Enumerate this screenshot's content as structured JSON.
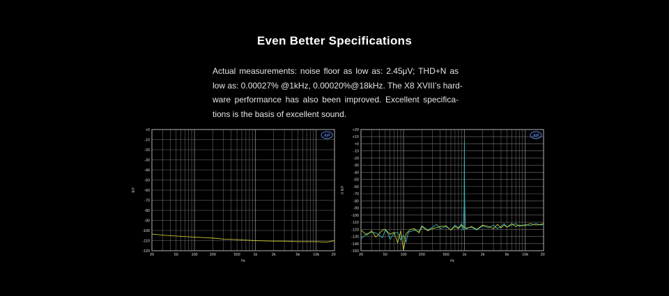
{
  "heading": "Even Better Specifications",
  "description": {
    "lines": [
      "Actual measurements: noise floor as low as: 2.45μV; THD+N as",
      "low as: 0.00027% @1kHz, 0.00020%@18kHz. The X8 XVIII’s hard-",
      "ware performance has also been improved. Excellent specifica-",
      "tions is the basis of excellent sound."
    ]
  },
  "colors": {
    "background": "#000000",
    "text": "#ffffff",
    "grid": "#8a8a8a",
    "trace_yellow": "#c8c832",
    "trace_cyan": "#30b8c0",
    "logo": "#5b7fe0"
  },
  "chart_data": [
    {
      "type": "line",
      "title": "",
      "xlabel": "Hz",
      "ylabel": "d B",
      "xscale": "log",
      "xlim": [
        20,
        20000
      ],
      "ylim": [
        -120,
        0
      ],
      "x_ticks": [
        "20",
        "50",
        "100",
        "200",
        "500",
        "1k",
        "2k",
        "5k",
        "10k",
        "20k"
      ],
      "y_ticks": [
        "+0",
        "-10",
        "-20",
        "-30",
        "-40",
        "-50",
        "-60",
        "-70",
        "-80",
        "-90",
        "-100",
        "-110",
        "-120"
      ],
      "grid": true,
      "logo": "AP",
      "series": [
        {
          "color": "#c8c832",
          "x": [
            20,
            30,
            50,
            70,
            100,
            150,
            200,
            300,
            500,
            700,
            1000,
            2000,
            3000,
            5000,
            7000,
            10000,
            15000,
            20000
          ],
          "y": [
            -103.5,
            -104.5,
            -105.5,
            -106,
            -106.5,
            -107,
            -107.5,
            -108.5,
            -109,
            -109.5,
            -110,
            -110.5,
            -110.5,
            -111,
            -111,
            -111,
            -111.5,
            -110
          ]
        }
      ]
    },
    {
      "type": "line",
      "title": "",
      "xlabel": "Hz",
      "ylabel": "d B V",
      "xscale": "log",
      "xlim": [
        20,
        20000
      ],
      "ylim": [
        -150,
        20
      ],
      "x_ticks": [
        "20",
        "50",
        "100",
        "200",
        "500",
        "1k",
        "2k",
        "5k",
        "10k",
        "20k"
      ],
      "y_ticks": [
        "+20",
        "+10",
        "+0",
        "-10",
        "-20",
        "-30",
        "-40",
        "-50",
        "-60",
        "-70",
        "-80",
        "-90",
        "-100",
        "-110",
        "-120",
        "-130",
        "-140",
        "-150"
      ],
      "grid": true,
      "logo": "AP",
      "series": [
        {
          "color": "#30b8c0",
          "x": [
            20,
            25,
            30,
            35,
            40,
            45,
            50,
            55,
            60,
            70,
            80,
            90,
            100,
            110,
            120,
            150,
            180,
            200,
            250,
            300,
            350,
            400,
            500,
            600,
            700,
            800,
            900,
            960,
            990,
            1000,
            1010,
            1040,
            1100,
            1300,
            1600,
            2000,
            2500,
            3000,
            3500,
            4000,
            4500,
            5000,
            6000,
            7000,
            8000,
            10000,
            12000,
            15000,
            18000,
            20000
          ],
          "y": [
            -133,
            -126,
            -124,
            -125,
            -128,
            -132,
            -121,
            -125,
            -134,
            -125,
            -124,
            -135,
            -128,
            -138,
            -124,
            -121,
            -123,
            -115,
            -121,
            -117,
            -113,
            -119,
            -116,
            -121,
            -114,
            -118,
            -112,
            -121,
            -85,
            5,
            -80,
            -120,
            -118,
            -117,
            -121,
            -115,
            -118,
            -114,
            -119,
            -116,
            -112,
            -117,
            -114,
            -112,
            -116,
            -113,
            -115,
            -112,
            -114,
            -113
          ]
        },
        {
          "color": "#c8c832",
          "x": [
            20,
            25,
            30,
            35,
            40,
            45,
            50,
            60,
            70,
            80,
            90,
            100,
            110,
            130,
            150,
            180,
            200,
            250,
            300,
            400,
            500,
            600,
            700,
            800,
            900,
            1000,
            1100,
            1300,
            1600,
            2000,
            2500,
            3000,
            3500,
            4000,
            4500,
            5000,
            6000,
            7000,
            8000,
            10000,
            12000,
            15000,
            18000,
            20000
          ],
          "y": [
            -121,
            -128,
            -122,
            -131,
            -126,
            -121,
            -120,
            -127,
            -124,
            -139,
            -122,
            -150,
            -126,
            -120,
            -119,
            -125,
            -116,
            -122,
            -119,
            -116,
            -115,
            -121,
            -116,
            -119,
            -114,
            -117,
            -119,
            -116,
            -120,
            -114,
            -116,
            -119,
            -113,
            -118,
            -114,
            -117,
            -112,
            -116,
            -114,
            -115,
            -112,
            -114,
            -113,
            -112
          ]
        }
      ]
    }
  ]
}
